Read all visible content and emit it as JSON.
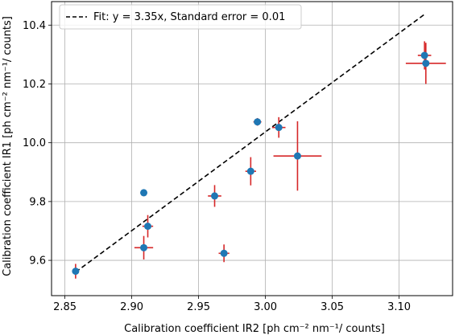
{
  "chart_data": {
    "type": "scatter",
    "xlabel": "Calibration coefficient IR2 [ph cm⁻² nm⁻¹/ counts]",
    "ylabel": "Calibration coefficient IR1 [ph cm⁻² nm⁻¹/ counts]",
    "xlim": [
      2.84,
      3.14
    ],
    "ylim": [
      9.48,
      10.48
    ],
    "x_ticks": [
      "2.85",
      "2.90",
      "2.95",
      "3.00",
      "3.05",
      "3.10"
    ],
    "y_ticks": [
      "9.6",
      "9.8",
      "10.0",
      "10.2",
      "10.4"
    ],
    "grid": true,
    "legend_position": "top-left",
    "series": [
      {
        "name": "Fit: y = 3.35x, Standard error = 0.01",
        "type": "line",
        "style": "dashed",
        "color": "#000000",
        "x": [
          2.858,
          3.12
        ],
        "y": [
          9.56,
          10.44
        ]
      },
      {
        "type": "scatter",
        "color": "#1f77b4",
        "error_color": "#d62728",
        "points": [
          {
            "x": 2.858,
            "y": 9.563,
            "xerr": 0.002,
            "yerr": 0.025
          },
          {
            "x": 2.909,
            "y": 9.83,
            "xerr": 0.002,
            "yerr": 0.012
          },
          {
            "x": 2.909,
            "y": 9.643,
            "xerr": 0.007,
            "yerr": 0.04
          },
          {
            "x": 2.912,
            "y": 9.716,
            "xerr": 0.004,
            "yerr": 0.038
          },
          {
            "x": 2.962,
            "y": 9.819,
            "xerr": 0.005,
            "yerr": 0.037
          },
          {
            "x": 2.969,
            "y": 9.624,
            "xerr": 0.004,
            "yerr": 0.03
          },
          {
            "x": 2.989,
            "y": 9.903,
            "xerr": 0.004,
            "yerr": 0.048
          },
          {
            "x": 2.994,
            "y": 10.071,
            "xerr": 0.003,
            "yerr": 0.013
          },
          {
            "x": 3.01,
            "y": 10.052,
            "xerr": 0.005,
            "yerr": 0.035
          },
          {
            "x": 3.024,
            "y": 9.955,
            "xerr": 0.018,
            "yerr": 0.118
          },
          {
            "x": 3.119,
            "y": 10.297,
            "xerr": 0.005,
            "yerr": 0.048
          },
          {
            "x": 3.12,
            "y": 10.27,
            "xerr": 0.015,
            "yerr": 0.07
          }
        ]
      }
    ]
  }
}
